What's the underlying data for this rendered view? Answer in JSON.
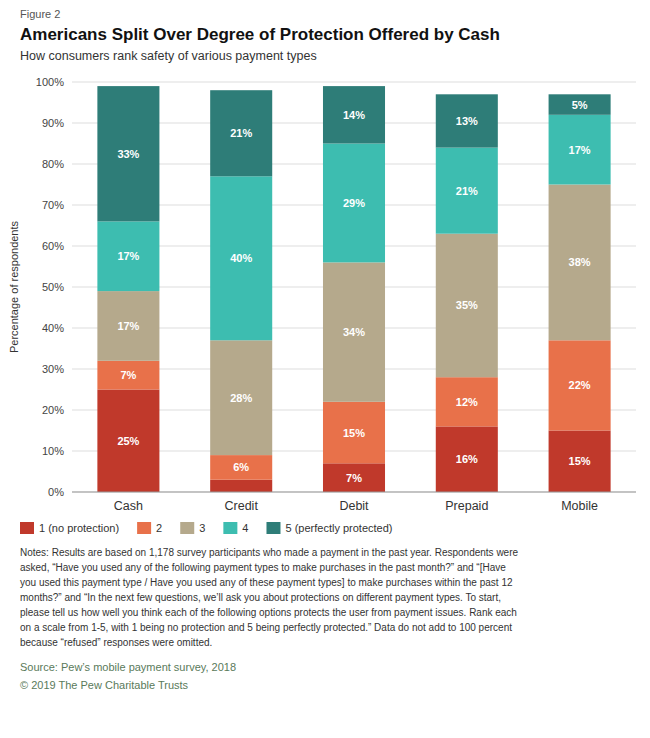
{
  "chart_data": {
    "type": "bar",
    "stacked": true,
    "figure_label": "Figure 2",
    "title": "Americans Split Over Degree of Protection Offered by Cash",
    "subtitle": "How consumers rank safety of various payment types",
    "categories": [
      "Cash",
      "Credit",
      "Debit",
      "Prepaid",
      "Mobile"
    ],
    "series": [
      {
        "name": "1 (no protection)",
        "color": "#c0392b",
        "values": [
          25,
          3,
          7,
          16,
          15
        ],
        "value_labels": [
          "25%",
          null,
          "7%",
          "16%",
          "15%"
        ]
      },
      {
        "name": "2",
        "color": "#e8714a",
        "values": [
          7,
          6,
          15,
          12,
          22
        ],
        "value_labels": [
          "7%",
          "6%",
          "15%",
          "12%",
          "22%"
        ]
      },
      {
        "name": "3",
        "color": "#b5a98c",
        "values": [
          17,
          28,
          34,
          35,
          38
        ],
        "value_labels": [
          "17%",
          "28%",
          "34%",
          "35%",
          "38%"
        ]
      },
      {
        "name": "4",
        "color": "#3dbdb0",
        "values": [
          17,
          40,
          29,
          21,
          17
        ],
        "value_labels": [
          "17%",
          "40%",
          "29%",
          "21%",
          "17%"
        ]
      },
      {
        "name": "5 (perfectly protected)",
        "color": "#2e7d78",
        "values": [
          33,
          21,
          14,
          13,
          5
        ],
        "value_labels": [
          "33%",
          "21%",
          "14%",
          "13%",
          "5%"
        ]
      }
    ],
    "ylabel": "Percentage of respondents",
    "ylim": [
      0,
      100
    ],
    "yticks": [
      {
        "value": 0,
        "label": "0%"
      },
      {
        "value": 10,
        "label": "10%"
      },
      {
        "value": 20,
        "label": "20%"
      },
      {
        "value": 30,
        "label": "30%"
      },
      {
        "value": 40,
        "label": "40%"
      },
      {
        "value": 50,
        "label": "50%"
      },
      {
        "value": 60,
        "label": "60%"
      },
      {
        "value": 70,
        "label": "70%"
      },
      {
        "value": 80,
        "label": "80%"
      },
      {
        "value": 90,
        "label": "90%"
      },
      {
        "value": 100,
        "label": "100%"
      }
    ],
    "grid": true,
    "legend": "bottom",
    "data_labels": true,
    "notes": [
      "Notes: Results are based on 1,178 survey participants who made a payment in the past year. Respondents were",
      "asked, “Have you used any of the following payment types to make purchases in the past month?” and “[Have",
      "you used this payment type / Have you used any of these payment types] to make purchases within the past 12",
      "months?” and “In the next few questions, we’ll ask you about protections on different payment types. To start,",
      "please tell us how well you think each of the following options protects the user from payment issues. Rank each",
      "on a scale from 1-5, with 1 being no protection and 5 being perfectly protected.” Data do not add to 100 percent",
      "because “refused” responses were omitted."
    ],
    "source": "Source: Pew’s mobile payment survey, 2018",
    "copyright": "© 2019 The Pew Charitable Trusts"
  }
}
